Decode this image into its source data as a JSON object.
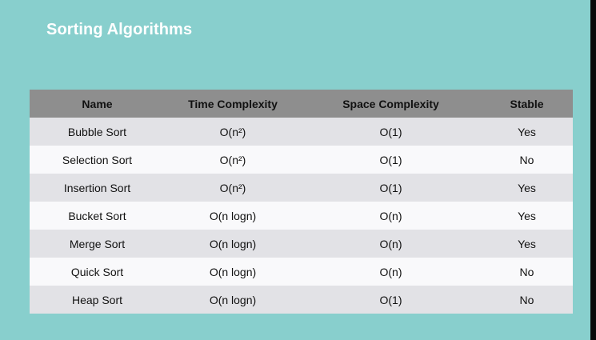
{
  "title": "Sorting Algorithms",
  "table": {
    "headers": [
      "Name",
      "Time Complexity",
      "Space Complexity",
      "Stable"
    ],
    "rows": [
      [
        "Bubble Sort",
        "O(n²)",
        "O(1)",
        "Yes"
      ],
      [
        "Selection Sort",
        "O(n²)",
        "O(1)",
        "No"
      ],
      [
        "Insertion Sort",
        "O(n²)",
        "O(1)",
        "Yes"
      ],
      [
        "Bucket Sort",
        "O(n logn)",
        "O(n)",
        "Yes"
      ],
      [
        "Merge Sort",
        "O(n logn)",
        "O(n)",
        "Yes"
      ],
      [
        "Quick Sort",
        "O(n logn)",
        "O(n)",
        "No"
      ],
      [
        "Heap Sort",
        "O(n logn)",
        "O(1)",
        "No"
      ]
    ]
  }
}
